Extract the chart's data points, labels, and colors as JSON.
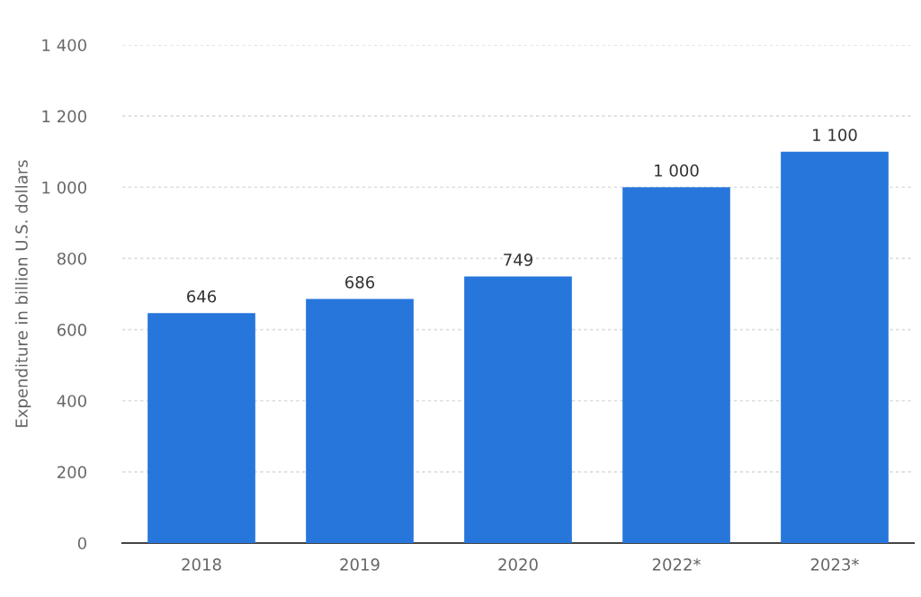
{
  "chart_data": {
    "type": "bar",
    "ylabel": "Expenditure in billion U.S. dollars",
    "categories": [
      "2018",
      "2019",
      "2020",
      "2022*",
      "2023*"
    ],
    "values": [
      646,
      686,
      749,
      1000,
      1100
    ],
    "value_labels": [
      "646",
      "686",
      "749",
      "1 000",
      "1 100"
    ],
    "color": "#2776dc",
    "ylim": [
      0,
      1400
    ],
    "yticks": [
      0,
      200,
      400,
      600,
      800,
      {
        "value": 1000,
        "label": "1 000"
      },
      {
        "value": 1200,
        "label": "1 200"
      },
      {
        "value": 1400,
        "label": "1 400"
      }
    ],
    "grid": "y"
  }
}
